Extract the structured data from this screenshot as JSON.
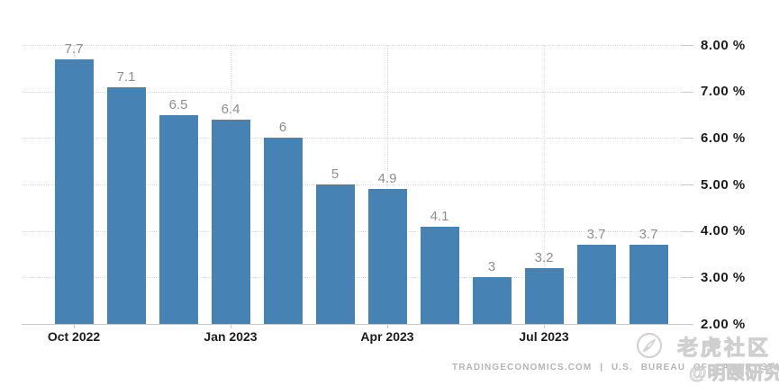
{
  "chart_data": {
    "type": "bar",
    "title": "",
    "values": [
      7.7,
      7.1,
      6.5,
      6.4,
      6,
      5,
      4.9,
      4.1,
      3,
      3.2,
      3.7,
      3.7
    ],
    "bar_labels": [
      "7.7",
      "7.1",
      "6.5",
      "6.4",
      "6",
      "5",
      "4.9",
      "4.1",
      "3",
      "3.2",
      "3.7",
      "3.7"
    ],
    "x_ticks": [
      {
        "label": "Oct 2022",
        "bar_index": 0
      },
      {
        "label": "Jan 2023",
        "bar_index": 3
      },
      {
        "label": "Apr 2023",
        "bar_index": 6
      },
      {
        "label": "Jul 2023",
        "bar_index": 9
      }
    ],
    "y_ticks": [
      {
        "label": "8.00 %",
        "value": 8
      },
      {
        "label": "7.00 %",
        "value": 7
      },
      {
        "label": "6.00 %",
        "value": 6
      },
      {
        "label": "5.00 %",
        "value": 5
      },
      {
        "label": "4.00 %",
        "value": 4
      },
      {
        "label": "3.00 %",
        "value": 3
      },
      {
        "label": "2.00 %",
        "value": 2
      }
    ],
    "ylim": [
      2,
      8
    ],
    "xlabel": "",
    "ylabel": "",
    "legend": "none",
    "grid": "dotted horizontal lines each 1%, dotted vertical lines at quarter ticks",
    "colors": {
      "bar": "#4682b4",
      "bar_label": "#8e8e8e",
      "axis_label": "#1c1c1c",
      "gridline": "#dedede",
      "baseline": "#c9c9c9",
      "attribution": "#b4b4b4",
      "watermark": "#cfcfcf"
    }
  },
  "attribution": {
    "text": "TRADINGECONOMICS.COM | U.S. BUREAU OF LABOR STATISTICS"
  },
  "watermarks": {
    "community": "老虎社区",
    "author": "@明颐研究"
  }
}
